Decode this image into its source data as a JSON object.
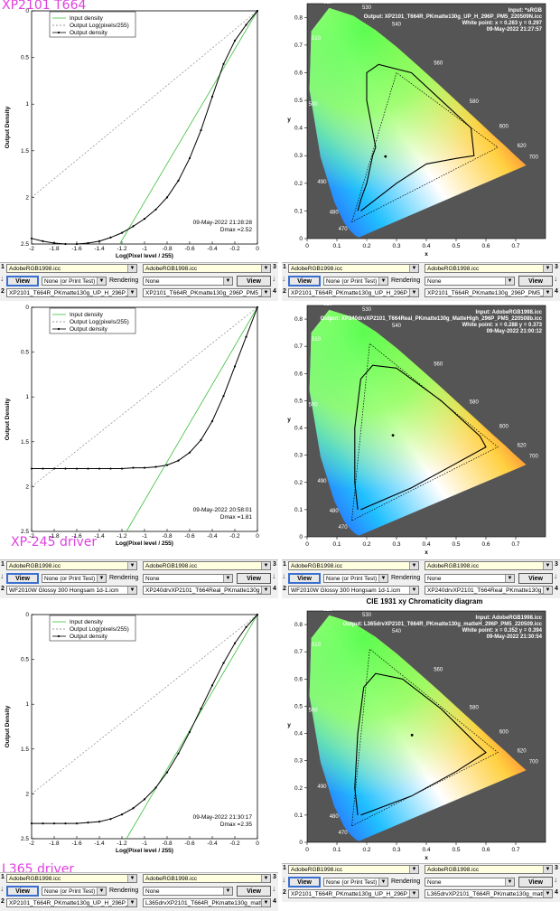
{
  "labels": {
    "top": "XP2101 T664",
    "mid": "XP-245 driver",
    "bot": "L365 driver",
    "cie_title": "CIE 1931 xy Chromaticity diagram"
  },
  "density_common": {
    "ylabel": "Output Density",
    "xlabel": "Log(Pixel level / 255)",
    "legend": [
      "Input density",
      "Output Log(pixels/255)",
      "Output density"
    ],
    "xticks": [
      "-2",
      "-1.8",
      "-1.6",
      "-1.4",
      "-1.2",
      "-1",
      "-0.8",
      "-0.6",
      "-0.4",
      "-0.2",
      "0"
    ],
    "yticks": [
      "0",
      "0.5",
      "1",
      "1.5",
      "2",
      "2.5"
    ]
  },
  "cie_common": {
    "xlabel": "x",
    "ylabel": "y",
    "xticks": [
      "0",
      "0.1",
      "0.2",
      "0.3",
      "0.4",
      "0.5",
      "0.6",
      "0.7"
    ],
    "yticks": [
      "0",
      "0.1",
      "0.2",
      "0.3",
      "0.4",
      "0.5",
      "0.6",
      "0.7",
      "0.8"
    ],
    "wl_labels": [
      "400",
      "470",
      "480",
      "490",
      "500",
      "510",
      "520",
      "530",
      "540",
      "560",
      "580",
      "600",
      "620",
      "700"
    ]
  },
  "chart_data": [
    {
      "type": "line",
      "title": "",
      "xlabel": "Log(Pixel level / 255)",
      "ylabel": "Output Density",
      "xlim": [
        -2,
        0
      ],
      "ylim": [
        0,
        2.5
      ],
      "y_inverted": true,
      "annotation_date": "09-May-2022 21:28:28",
      "annotation_dmax": "Dmax =2.52",
      "x": [
        -2,
        -1.9,
        -1.8,
        -1.7,
        -1.6,
        -1.5,
        -1.4,
        -1.3,
        -1.2,
        -1.1,
        -1.0,
        -0.9,
        -0.8,
        -0.7,
        -0.6,
        -0.5,
        -0.4,
        -0.3,
        -0.2,
        -0.1,
        0
      ],
      "series": [
        {
          "name": "Output density",
          "values": [
            2.44,
            2.47,
            2.49,
            2.5,
            2.5,
            2.49,
            2.47,
            2.43,
            2.38,
            2.31,
            2.23,
            2.13,
            2.0,
            1.82,
            1.58,
            1.28,
            0.92,
            0.57,
            0.32,
            0.15,
            0.0
          ]
        }
      ],
      "input_density": {
        "x": [
          -1.22,
          0
        ],
        "y": [
          2.5,
          0
        ]
      },
      "reference": {
        "x": [
          -2,
          0
        ],
        "y": [
          2.0,
          0
        ]
      }
    },
    {
      "type": "line",
      "title": "",
      "xlabel": "Log(Pixel level / 255)",
      "ylabel": "Output Density",
      "xlim": [
        -2,
        0
      ],
      "ylim": [
        0,
        2.5
      ],
      "y_inverted": true,
      "annotation_date": "09-May-2022 20:58:01",
      "annotation_dmax": "Dmax =1.81",
      "x": [
        -2,
        -1.9,
        -1.8,
        -1.7,
        -1.6,
        -1.5,
        -1.4,
        -1.3,
        -1.2,
        -1.1,
        -1.0,
        -0.9,
        -0.8,
        -0.7,
        -0.6,
        -0.5,
        -0.4,
        -0.3,
        -0.2,
        -0.1,
        0
      ],
      "series": [
        {
          "name": "Output density",
          "values": [
            1.8,
            1.8,
            1.8,
            1.8,
            1.8,
            1.8,
            1.8,
            1.8,
            1.8,
            1.79,
            1.79,
            1.78,
            1.76,
            1.71,
            1.62,
            1.48,
            1.27,
            0.99,
            0.66,
            0.33,
            0.0
          ]
        }
      ],
      "input_density": {
        "x": [
          -1.16,
          0
        ],
        "y": [
          2.5,
          0
        ]
      },
      "reference": {
        "x": [
          -2,
          0
        ],
        "y": [
          2.0,
          0
        ]
      }
    },
    {
      "type": "line",
      "title": "",
      "xlabel": "Log(Pixel level / 255)",
      "ylabel": "Output Density",
      "xlim": [
        -2,
        0
      ],
      "ylim": [
        0,
        2.5
      ],
      "y_inverted": true,
      "annotation_date": "09-May-2022 21:30:17",
      "annotation_dmax": "Dmax =2.35",
      "x": [
        -2,
        -1.9,
        -1.8,
        -1.7,
        -1.6,
        -1.5,
        -1.4,
        -1.3,
        -1.2,
        -1.1,
        -1.0,
        -0.9,
        -0.8,
        -0.7,
        -0.6,
        -0.5,
        -0.4,
        -0.3,
        -0.2,
        -0.1,
        0
      ],
      "series": [
        {
          "name": "Output density",
          "values": [
            2.33,
            2.33,
            2.33,
            2.33,
            2.33,
            2.32,
            2.31,
            2.28,
            2.23,
            2.16,
            2.06,
            1.93,
            1.76,
            1.55,
            1.31,
            1.05,
            0.79,
            0.54,
            0.32,
            0.14,
            0.0
          ]
        }
      ],
      "input_density": {
        "x": [
          -1.16,
          0
        ],
        "y": [
          2.5,
          0
        ]
      },
      "reference": {
        "x": [
          -2,
          0
        ],
        "y": [
          2.0,
          0
        ]
      }
    },
    {
      "type": "scatter",
      "title": "",
      "xlabel": "x",
      "ylabel": "y",
      "xlim": [
        0,
        0.8
      ],
      "ylim": [
        0,
        0.85
      ],
      "info": [
        "Input: *sRGB",
        "Output: XP2101_T664R_PKmatte130g_UP_H_296P_PM5_220509N.icc",
        "White point:  x = 0.263  y = 0.297",
        "09-May-2022 21:27:57"
      ],
      "white_point": [
        0.263,
        0.297
      ],
      "gamut_output": [
        [
          0.17,
          0.1
        ],
        [
          0.18,
          0.14
        ],
        [
          0.2,
          0.2
        ],
        [
          0.22,
          0.3
        ],
        [
          0.23,
          0.33
        ],
        [
          0.2,
          0.5
        ],
        [
          0.2,
          0.6
        ],
        [
          0.24,
          0.63
        ],
        [
          0.35,
          0.6
        ],
        [
          0.45,
          0.5
        ],
        [
          0.55,
          0.4
        ],
        [
          0.56,
          0.3
        ],
        [
          0.5,
          0.29
        ],
        [
          0.4,
          0.27
        ],
        [
          0.3,
          0.2
        ],
        [
          0.18,
          0.1
        ]
      ],
      "gamut_reference": [
        [
          0.15,
          0.06
        ],
        [
          0.3,
          0.6
        ],
        [
          0.64,
          0.33
        ],
        [
          0.15,
          0.06
        ]
      ]
    },
    {
      "type": "scatter",
      "title": "",
      "xlabel": "x",
      "ylabel": "y",
      "xlim": [
        0,
        0.8
      ],
      "ylim": [
        0,
        0.85
      ],
      "info": [
        "Input: AdobeRGB1998.icc",
        "Output: XP240drvXP2101_T664Real_PKmatte130g_MatteHigh_296P_PM5_220508b.icc",
        "White point:  x = 0.288  y = 0.373",
        "09-May-2022 21:00:12"
      ],
      "white_point": [
        0.288,
        0.373
      ],
      "gamut_output": [
        [
          0.17,
          0.1
        ],
        [
          0.16,
          0.2
        ],
        [
          0.16,
          0.4
        ],
        [
          0.18,
          0.58
        ],
        [
          0.22,
          0.63
        ],
        [
          0.3,
          0.62
        ],
        [
          0.45,
          0.5
        ],
        [
          0.58,
          0.37
        ],
        [
          0.6,
          0.33
        ],
        [
          0.5,
          0.27
        ],
        [
          0.35,
          0.18
        ],
        [
          0.18,
          0.1
        ]
      ],
      "gamut_reference": [
        [
          0.15,
          0.06
        ],
        [
          0.21,
          0.71
        ],
        [
          0.64,
          0.33
        ],
        [
          0.15,
          0.06
        ]
      ]
    },
    {
      "type": "scatter",
      "title": "CIE 1931 xy Chromaticity diagram",
      "xlabel": "x",
      "ylabel": "y",
      "xlim": [
        0,
        0.8
      ],
      "ylim": [
        0,
        0.85
      ],
      "info": [
        "Input: AdobeRGB1998.icc",
        "Output: L365drvXP2101_T664R_PKmatte130g_matteH_296P_PM5_220509.icc",
        "White point:  x = 0.352  y = 0.394",
        "09-May-2022 21:30:54"
      ],
      "white_point": [
        0.352,
        0.394
      ],
      "gamut_output": [
        [
          0.17,
          0.1
        ],
        [
          0.16,
          0.2
        ],
        [
          0.17,
          0.4
        ],
        [
          0.19,
          0.57
        ],
        [
          0.23,
          0.62
        ],
        [
          0.32,
          0.6
        ],
        [
          0.45,
          0.49
        ],
        [
          0.57,
          0.36
        ],
        [
          0.6,
          0.33
        ],
        [
          0.5,
          0.26
        ],
        [
          0.35,
          0.17
        ],
        [
          0.18,
          0.1
        ]
      ],
      "gamut_reference": [
        [
          0.15,
          0.06
        ],
        [
          0.21,
          0.71
        ],
        [
          0.64,
          0.33
        ],
        [
          0.15,
          0.06
        ]
      ]
    }
  ],
  "controls": [
    {
      "left": {
        "n1": "1",
        "n2": "2",
        "top_sel": "AdobeRGB1998.icc",
        "view": "View",
        "print": "None (or Print Test)",
        "rendering_label": "Rendering",
        "rendering": "None",
        "view2": "View",
        "bot_sel": "XP2101_T664R_PKmatte130g_UP_H_296P_Pk",
        "right_sel_top": "AdobeRGB1998.icc",
        "right_sel_bot": "XP2101_T664R_PKmatte130g_296P_PM5_220",
        "n3": "3",
        "n4": "4"
      },
      "right": {
        "n1": "1",
        "n2": "2",
        "top_sel": "AdobeRGB1998.icc",
        "view": "View",
        "print": "None (or Print Test)",
        "rendering_label": "Rendering",
        "rendering": "None",
        "view2": "View",
        "bot_sel": "XP2101_T664R_PKmatte130g_UP_H_296P_Pk",
        "right_sel_top": "AdobeRGB1998.icc",
        "right_sel_bot": "XP2101_T664R_PKmatte130g_296P_PM5_220",
        "n3": "3",
        "n4": "4"
      }
    },
    {
      "left": {
        "n1": "1",
        "n2": "2",
        "top_sel": "AdobeRGB1998.icc",
        "view": "View",
        "print": "None (or Print Test)",
        "rendering_label": "Rendering",
        "rendering": "None",
        "view2": "View",
        "bot_sel": "WF2010W Glossy 300 Hongsam 1d-1.icm",
        "right_sel_top": "AdobeRGB1998.icc",
        "right_sel_bot": "XP240drvXP2101_T664Real_PKmatte130g_Ma",
        "n3": "3",
        "n4": "4"
      },
      "right": {
        "n1": "1",
        "n2": "2",
        "top_sel": "AdobeRGB1998.icc",
        "view": "View",
        "print": "None (or Print Test)",
        "rendering_label": "Rendering",
        "rendering": "None",
        "view2": "View",
        "bot_sel": "WF2010W Glossy 300 Hongsam 1d-1.icm",
        "right_sel_top": "AdobeRGB1998.icc",
        "right_sel_bot": "XP240drvXP2101_T664Real_PKmatte130g_Ma",
        "n3": "3",
        "n4": "4"
      }
    },
    {
      "left": {
        "n1": "1",
        "n2": "2",
        "top_sel": "AdobeRGB1998.icc",
        "view": "View",
        "print": "None (or Print Test)",
        "rendering_label": "Rendering",
        "rendering": "None",
        "view2": "View",
        "bot_sel": "XP2101_T664R_PKmatte130g_UP_H_296P_Pk",
        "right_sel_top": "AdobeRGB1998.icc",
        "right_sel_bot": "L365drvXP2101_T664R_PKmatte130g_matteH",
        "n3": "3",
        "n4": "4"
      },
      "right": {
        "n1": "1",
        "n2": "2",
        "top_sel": "AdobeRGB1998.icc",
        "view": "View",
        "print": "None (or Print Test)",
        "rendering_label": "Rendering",
        "rendering": "None",
        "view2": "View",
        "bot_sel": "XP2101_T664R_PKmatte130g_UP_H_296P_Pk",
        "right_sel_top": "AdobeRGB1998.icc",
        "right_sel_bot": "L365drvXP2101_T664R_PKmatte130g_matteH",
        "n3": "3",
        "n4": "4"
      }
    }
  ]
}
